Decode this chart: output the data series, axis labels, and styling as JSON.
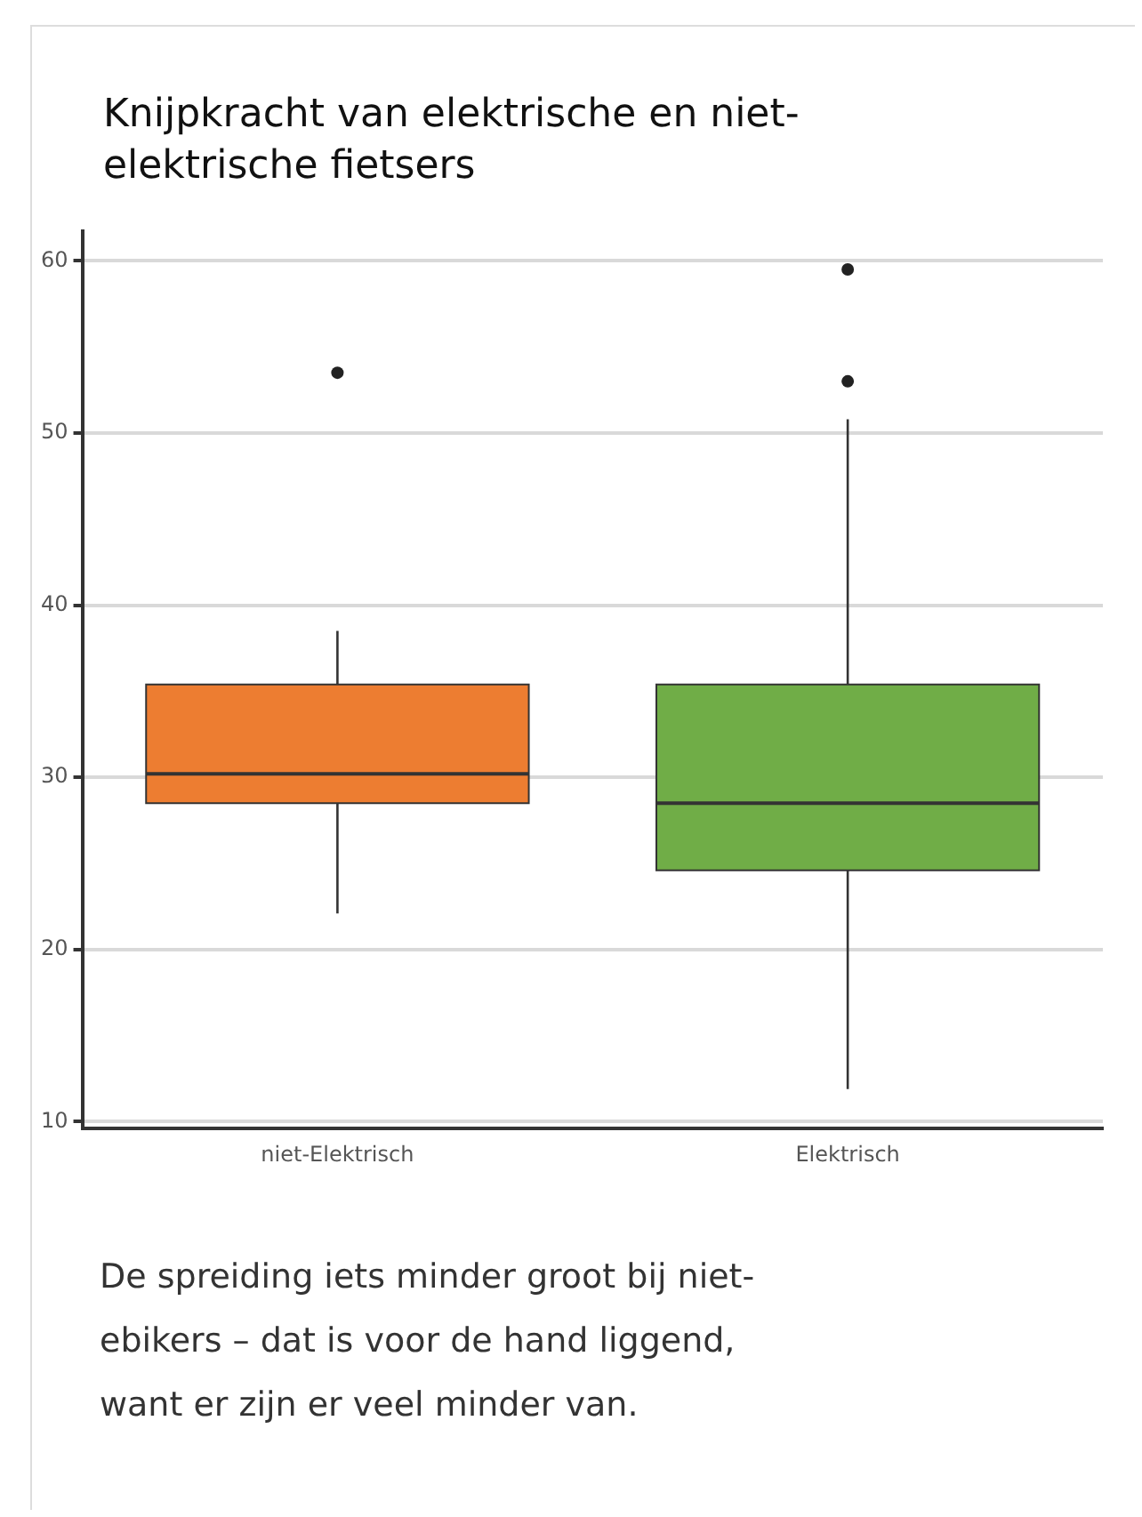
{
  "chart_data": {
    "type": "box",
    "title": "Knijpkracht van elektrische en niet-elektrische fietsers",
    "categories": [
      "niet-Elektrisch",
      "Elektrisch"
    ],
    "colors": [
      "#ed7d31",
      "#70ad47"
    ],
    "boxes": [
      {
        "low": 22.1,
        "q1": 28.5,
        "median": 30.2,
        "q3": 35.4,
        "high": 38.5,
        "outliers": [
          53.5
        ]
      },
      {
        "low": 11.9,
        "q1": 24.6,
        "median": 28.5,
        "q3": 35.4,
        "high": 50.8,
        "outliers": [
          59.5,
          53.0
        ]
      }
    ],
    "ylim": [
      9.6,
      61.7
    ],
    "yticks": [
      10,
      20,
      30,
      40,
      50,
      60
    ],
    "grid": "y",
    "legend": false,
    "annotations": [
      "De spreiding iets minder groot bij niet-ebikers – dat is voor de hand liggend, want er zijn er veel minder van."
    ]
  }
}
